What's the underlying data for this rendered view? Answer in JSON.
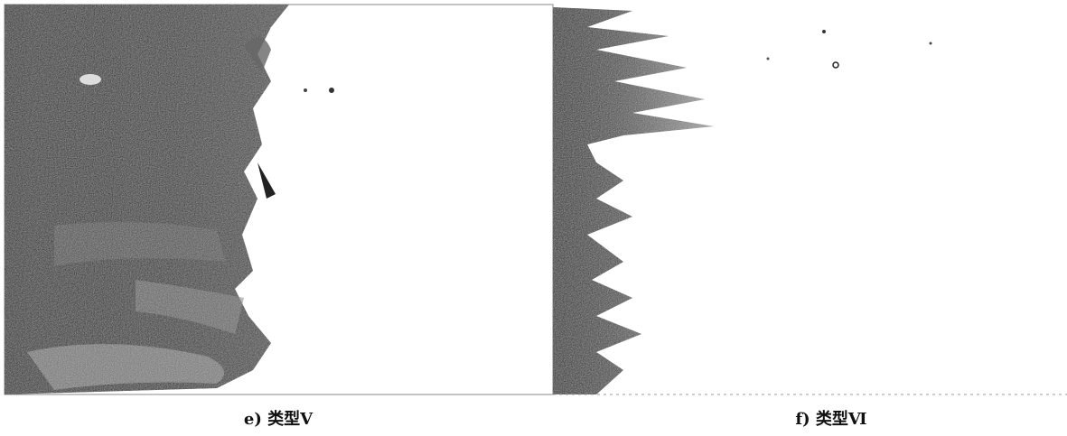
{
  "figures": [
    {
      "caption": "e) 类型Ⅴ"
    },
    {
      "caption": "f) 类型Ⅵ"
    }
  ]
}
